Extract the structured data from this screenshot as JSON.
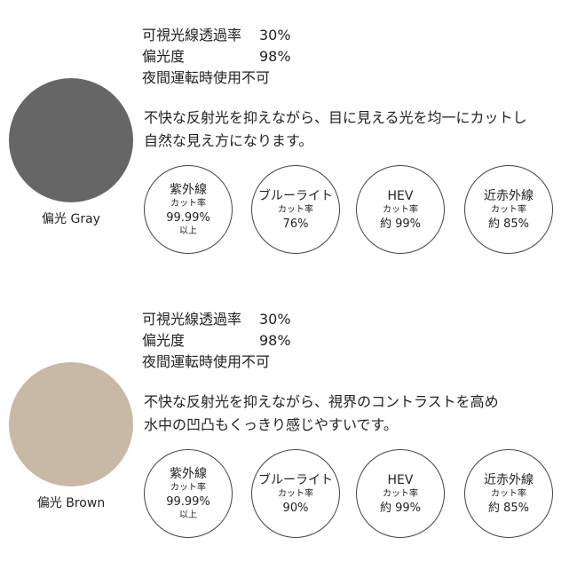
{
  "sections": [
    {
      "specs": [
        {
          "label": "可視光線透過率",
          "value": "30%"
        },
        {
          "label": "偏光度",
          "value": "98%"
        }
      ],
      "note": "夜間運転時使用不可",
      "description": [
        "不快な反射光を抑えながら、目に見える光を均一にカットし",
        "自然な見え方になります。"
      ],
      "swatch_label": "偏光 Gray",
      "badges": [
        {
          "lines": [
            "紫外線",
            "カット率",
            "99.99%",
            "以上"
          ]
        },
        {
          "lines": [
            "ブルーライト",
            "カット率",
            "76%"
          ]
        },
        {
          "lines": [
            "HEV",
            "カット率",
            "約 99%"
          ]
        },
        {
          "lines": [
            "近赤外線",
            "カット率",
            "約 85%"
          ]
        }
      ]
    },
    {
      "specs": [
        {
          "label": "可視光線透過率",
          "value": "30%"
        },
        {
          "label": "偏光度",
          "value": "98%"
        }
      ],
      "note": "夜間運転時使用不可",
      "description": [
        "不快な反射光を抑えながら、視界のコントラストを高め",
        "水中の凹凸もくっきり感じやすいです。"
      ],
      "swatch_label": "偏光 Brown",
      "badges": [
        {
          "lines": [
            "紫外線",
            "カット率",
            "99.99%",
            "以上"
          ]
        },
        {
          "lines": [
            "ブルーライト",
            "カット率",
            "90%"
          ]
        },
        {
          "lines": [
            "HEV",
            "カット率",
            "約 99%"
          ]
        },
        {
          "lines": [
            "近赤外線",
            "カット率",
            "約 85%"
          ]
        }
      ]
    }
  ]
}
